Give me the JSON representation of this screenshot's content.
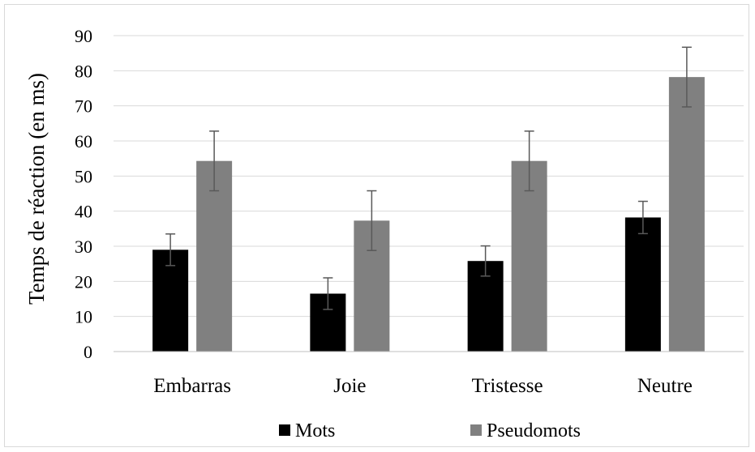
{
  "chart_data": {
    "type": "bar",
    "title": "",
    "xlabel": "",
    "ylabel": "Temps de réaction (en ms)",
    "ylim": [
      0,
      90
    ],
    "yticks": [
      0,
      10,
      20,
      30,
      40,
      50,
      60,
      70,
      80,
      90
    ],
    "categories": [
      "Embarras",
      "Joie",
      "Tristesse",
      "Neutre"
    ],
    "series": [
      {
        "name": "Mots",
        "color": "#000000",
        "values": [
          29,
          16.5,
          25.8,
          38.2
        ],
        "error": [
          4.5,
          4.5,
          4.3,
          4.6
        ]
      },
      {
        "name": "Pseudomots",
        "color": "#808080",
        "values": [
          54.3,
          37.3,
          54.3,
          78.2
        ],
        "error": [
          8.5,
          8.5,
          8.5,
          8.5
        ]
      }
    ],
    "error_bar_color": "#595959",
    "grid": true,
    "gridline_color": "#d9d9d9",
    "legend_position": "bottom"
  }
}
